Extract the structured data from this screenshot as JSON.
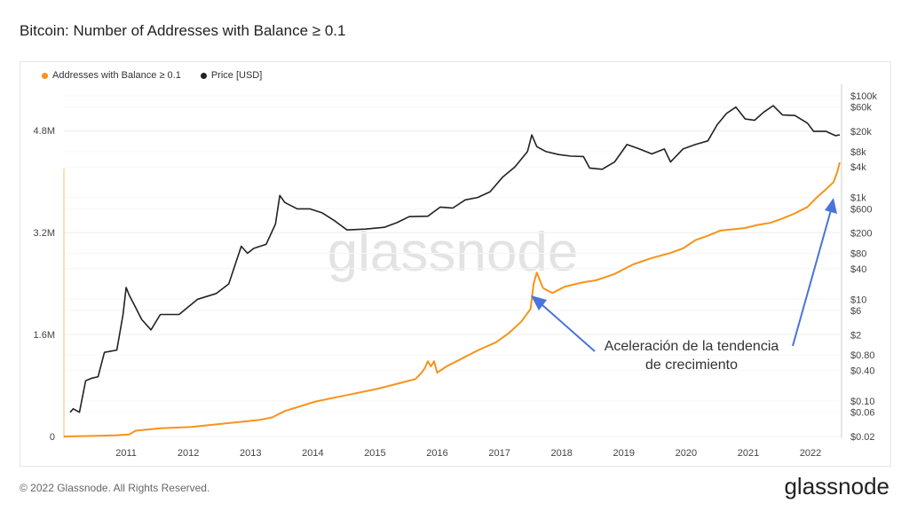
{
  "page": {
    "title": "Bitcoin: Number of Addresses with Balance ≥ 0.1"
  },
  "legend": [
    {
      "label": "Addresses with Balance ≥ 0.1",
      "color": "#f7931a"
    },
    {
      "label": "Price [USD]",
      "color": "#222222"
    }
  ],
  "watermark": "glassnode",
  "footer": {
    "copyright": "© 2022 Glassnode. All Rights Reserved.",
    "logo": "glassnode"
  },
  "annotation": {
    "line1": "Aceleración de la tendencia",
    "line2": "de crecimiento",
    "arrow_color": "#4a74d8"
  },
  "chart_data": {
    "type": "line",
    "title": "Bitcoin: Number of Addresses with Balance ≥ 0.1",
    "x_ticks": [
      "2011",
      "2012",
      "2013",
      "2014",
      "2015",
      "2016",
      "2017",
      "2018",
      "2019",
      "2020",
      "2021",
      "2022"
    ],
    "xlim": [
      2010.45,
      2022.92
    ],
    "y_left": {
      "ticks": [
        "0",
        "1.6M",
        "3.2M",
        "4.8M"
      ],
      "tick_values": [
        0,
        1600000,
        3200000,
        4800000
      ],
      "range": [
        0,
        5400000
      ]
    },
    "y_right": {
      "scale": "log",
      "ticks": [
        "$100k",
        "$60k",
        "$20k",
        "$8k",
        "$4k",
        "$1k",
        "$600",
        "$200",
        "$80",
        "$40",
        "$10",
        "$6",
        "$2",
        "$0.80",
        "$0.40",
        "$0.10",
        "$0.06",
        "$0.02"
      ],
      "tick_values": [
        100000,
        60000,
        20000,
        8000,
        4000,
        1000,
        600,
        200,
        80,
        40,
        10,
        6,
        2,
        0.8,
        0.4,
        0.1,
        0.06,
        0.02
      ]
    },
    "series": [
      {
        "name": "Addresses with Balance ≥ 0.1",
        "axis": "left",
        "color": "#f7931a",
        "points": [
          [
            2010.45,
            0
          ],
          [
            2011.0,
            10000
          ],
          [
            2011.3,
            20000
          ],
          [
            2011.5,
            30000
          ],
          [
            2011.6,
            90000
          ],
          [
            2011.8,
            110000
          ],
          [
            2012.0,
            130000
          ],
          [
            2012.5,
            150000
          ],
          [
            2013.0,
            200000
          ],
          [
            2013.3,
            230000
          ],
          [
            2013.6,
            260000
          ],
          [
            2013.8,
            300000
          ],
          [
            2014.0,
            400000
          ],
          [
            2014.5,
            550000
          ],
          [
            2015.0,
            650000
          ],
          [
            2015.5,
            750000
          ],
          [
            2015.9,
            850000
          ],
          [
            2016.1,
            900000
          ],
          [
            2016.2,
            1000000
          ],
          [
            2016.25,
            1070000
          ],
          [
            2016.3,
            1180000
          ],
          [
            2016.35,
            1100000
          ],
          [
            2016.4,
            1180000
          ],
          [
            2016.45,
            1000000
          ],
          [
            2016.6,
            1100000
          ],
          [
            2016.9,
            1250000
          ],
          [
            2017.1,
            1350000
          ],
          [
            2017.4,
            1480000
          ],
          [
            2017.6,
            1620000
          ],
          [
            2017.8,
            1800000
          ],
          [
            2017.95,
            2000000
          ],
          [
            2018.0,
            2400000
          ],
          [
            2018.05,
            2570000
          ],
          [
            2018.15,
            2330000
          ],
          [
            2018.3,
            2250000
          ],
          [
            2018.5,
            2350000
          ],
          [
            2018.8,
            2420000
          ],
          [
            2019.0,
            2450000
          ],
          [
            2019.3,
            2550000
          ],
          [
            2019.6,
            2700000
          ],
          [
            2019.9,
            2800000
          ],
          [
            2020.2,
            2880000
          ],
          [
            2020.4,
            2950000
          ],
          [
            2020.6,
            3080000
          ],
          [
            2020.8,
            3150000
          ],
          [
            2021.0,
            3230000
          ],
          [
            2021.2,
            3250000
          ],
          [
            2021.4,
            3270000
          ],
          [
            2021.6,
            3320000
          ],
          [
            2021.8,
            3350000
          ],
          [
            2022.0,
            3420000
          ],
          [
            2022.2,
            3500000
          ],
          [
            2022.4,
            3600000
          ],
          [
            2022.55,
            3750000
          ],
          [
            2022.7,
            3880000
          ],
          [
            2022.82,
            3990000
          ],
          [
            2022.88,
            4150000
          ],
          [
            2022.92,
            4300000
          ]
        ]
      },
      {
        "name": "Price [USD]",
        "axis": "right",
        "color": "#222222",
        "points": [
          [
            2010.55,
            0.06
          ],
          [
            2010.6,
            0.07
          ],
          [
            2010.7,
            0.06
          ],
          [
            2010.8,
            0.25
          ],
          [
            2010.9,
            0.28
          ],
          [
            2011.0,
            0.3
          ],
          [
            2011.1,
            0.9
          ],
          [
            2011.3,
            1.0
          ],
          [
            2011.4,
            5
          ],
          [
            2011.45,
            17
          ],
          [
            2011.5,
            12
          ],
          [
            2011.6,
            7
          ],
          [
            2011.7,
            4
          ],
          [
            2011.85,
            2.5
          ],
          [
            2012.0,
            5
          ],
          [
            2012.3,
            5
          ],
          [
            2012.6,
            10
          ],
          [
            2012.9,
            13
          ],
          [
            2013.1,
            20
          ],
          [
            2013.3,
            110
          ],
          [
            2013.4,
            80
          ],
          [
            2013.5,
            100
          ],
          [
            2013.7,
            120
          ],
          [
            2013.85,
            300
          ],
          [
            2013.92,
            1100
          ],
          [
            2014.0,
            800
          ],
          [
            2014.2,
            600
          ],
          [
            2014.4,
            600
          ],
          [
            2014.6,
            500
          ],
          [
            2014.8,
            350
          ],
          [
            2015.0,
            230
          ],
          [
            2015.3,
            240
          ],
          [
            2015.6,
            260
          ],
          [
            2015.8,
            320
          ],
          [
            2016.0,
            420
          ],
          [
            2016.3,
            430
          ],
          [
            2016.5,
            650
          ],
          [
            2016.7,
            620
          ],
          [
            2016.9,
            900
          ],
          [
            2017.1,
            1000
          ],
          [
            2017.3,
            1300
          ],
          [
            2017.5,
            2500
          ],
          [
            2017.7,
            4000
          ],
          [
            2017.9,
            8000
          ],
          [
            2017.97,
            17000
          ],
          [
            2018.05,
            10000
          ],
          [
            2018.2,
            8000
          ],
          [
            2018.4,
            7000
          ],
          [
            2018.6,
            6500
          ],
          [
            2018.8,
            6400
          ],
          [
            2018.9,
            3800
          ],
          [
            2019.1,
            3600
          ],
          [
            2019.3,
            5000
          ],
          [
            2019.5,
            11000
          ],
          [
            2019.7,
            9000
          ],
          [
            2019.9,
            7200
          ],
          [
            2020.1,
            9000
          ],
          [
            2020.2,
            5000
          ],
          [
            2020.4,
            9000
          ],
          [
            2020.6,
            11000
          ],
          [
            2020.8,
            13000
          ],
          [
            2020.95,
            27000
          ],
          [
            2021.1,
            45000
          ],
          [
            2021.25,
            60000
          ],
          [
            2021.4,
            35000
          ],
          [
            2021.55,
            33000
          ],
          [
            2021.7,
            48000
          ],
          [
            2021.85,
            64000
          ],
          [
            2022.0,
            42000
          ],
          [
            2022.2,
            41000
          ],
          [
            2022.4,
            29000
          ],
          [
            2022.5,
            20000
          ],
          [
            2022.7,
            20000
          ],
          [
            2022.85,
            16500
          ],
          [
            2022.92,
            17000
          ]
        ]
      }
    ]
  }
}
